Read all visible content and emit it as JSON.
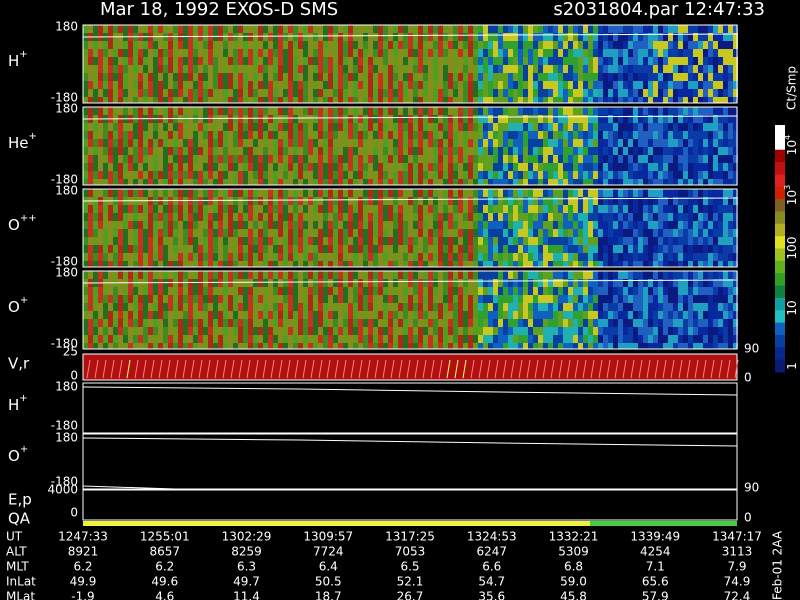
{
  "header": {
    "title": "Mar 18, 1992   EXOS-D SMS",
    "file": "s2031804.par  12:47:33"
  },
  "panels": [
    {
      "ion": "H",
      "charge": "+",
      "top": "180",
      "bottom": "-180"
    },
    {
      "ion": "He",
      "charge": "+",
      "top": "180",
      "bottom": "-180"
    },
    {
      "ion": "O",
      "charge": "++",
      "top": "180",
      "bottom": "-180"
    },
    {
      "ion": "O",
      "charge": "+",
      "top": "180",
      "bottom": "-180"
    }
  ],
  "vr": {
    "label": "V,r",
    "top": "25",
    "bottom": "0",
    "right_top": "90",
    "right_bottom": "0"
  },
  "pa_panels": [
    {
      "ion": "H",
      "charge": "+",
      "top": "180",
      "bottom": "-180"
    },
    {
      "ion": "O",
      "charge": "+",
      "top": "180",
      "bottom": "-180"
    }
  ],
  "ep": {
    "label": "E,p",
    "top": "4000",
    "right_top": "90"
  },
  "qa": {
    "label": "QA",
    "left": "0",
    "right": "0"
  },
  "colorbar": {
    "unit": "Ct/Smp",
    "labels": [
      {
        "base": "10",
        "exp": "4"
      },
      {
        "base": "10",
        "exp": "3"
      },
      {
        "text": "100"
      },
      {
        "text": "10"
      },
      {
        "text": "1"
      }
    ]
  },
  "footer": {
    "rows": [
      {
        "label": "UT",
        "values": [
          "1247:33",
          "1255:01",
          "1302:29",
          "1309:57",
          "1317:25",
          "1324:53",
          "1332:21",
          "1339:49",
          "1347:17"
        ]
      },
      {
        "label": "ALT",
        "values": [
          "8921",
          "8657",
          "8259",
          "7724",
          "7053",
          "6247",
          "5309",
          "4254",
          "3113"
        ]
      },
      {
        "label": "MLT",
        "values": [
          "6.2",
          "6.2",
          "6.3",
          "6.4",
          "6.5",
          "6.6",
          "6.8",
          "7.1",
          "7.9"
        ]
      },
      {
        "label": "InLat",
        "values": [
          "49.9",
          "49.6",
          "49.7",
          "50.5",
          "52.1",
          "54.7",
          "59.0",
          "65.6",
          "74.9"
        ]
      },
      {
        "label": "MLat",
        "values": [
          "-1.9",
          "4.6",
          "11.4",
          "18.7",
          "26.7",
          "35.6",
          "45.8",
          "57.9",
          "72.4"
        ]
      }
    ]
  },
  "stamp": "Feb-01 2AA"
}
